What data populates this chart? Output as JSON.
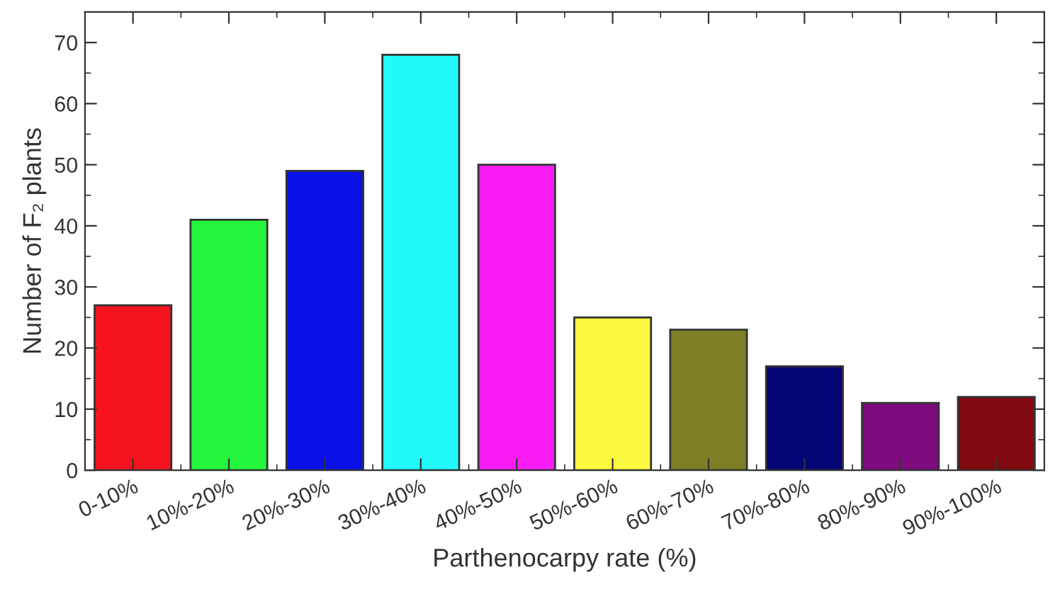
{
  "chart_data": {
    "type": "bar",
    "xlabel": "Parthenocarpy rate (%)",
    "ylabel": "Number of F₂ plants",
    "categories": [
      "0-10%",
      "10%-20%",
      "20%-30%",
      "30%-40%",
      "40%-50%",
      "50%-60%",
      "60%-70%",
      "70%-80%",
      "80%-90%",
      "90%-100%"
    ],
    "values": [
      27,
      41,
      49,
      68,
      50,
      25,
      23,
      17,
      11,
      12
    ],
    "colors": [
      "#f5141e",
      "#22f53c",
      "#0a10e8",
      "#22fafa",
      "#fa1cf5",
      "#fcfa40",
      "#7f7d25",
      "#050575",
      "#7e0c7f",
      "#800a10"
    ],
    "ylim": [
      0,
      75
    ],
    "yticks": [
      0,
      10,
      20,
      30,
      40,
      50,
      60,
      70
    ],
    "grid": false,
    "legend": false
  }
}
